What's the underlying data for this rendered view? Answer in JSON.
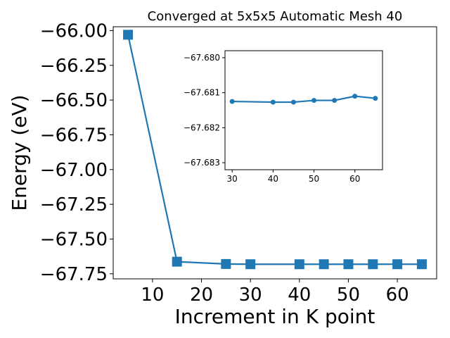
{
  "chart_data": [
    {
      "type": "line",
      "title": "Converged at 5x5x5 Automatic Mesh 40",
      "xlabel": "Increment in K point",
      "ylabel": "Energy (eV)",
      "xlim": [
        1.975,
        68.025
      ],
      "ylim": [
        -67.7865,
        -65.9725
      ],
      "xticks": [
        10,
        20,
        30,
        40,
        50,
        60
      ],
      "yticks": [
        -66.0,
        -66.25,
        -66.5,
        -66.75,
        -67.0,
        -67.25,
        -67.5,
        -67.75
      ],
      "xtick_labels": [
        "10",
        "20",
        "30",
        "40",
        "50",
        "60"
      ],
      "ytick_labels": [
        "−66.00",
        "−66.25",
        "−66.50",
        "−66.75",
        "−67.00",
        "−67.25",
        "−67.50",
        "−67.75"
      ],
      "grid": false,
      "color": "#1f77b4",
      "marker": "square",
      "series": [
        {
          "x": [
            5,
            15,
            25,
            30,
            40,
            45,
            50,
            55,
            60,
            65
          ],
          "y": [
            -66.03,
            -67.663,
            -67.6795,
            -67.6812,
            -67.6813,
            -67.6813,
            -67.6812,
            -67.6812,
            -67.6811,
            -67.6812
          ]
        }
      ]
    },
    {
      "type": "line",
      "title": "",
      "xlabel": "",
      "ylabel": "",
      "xlim": [
        28.25,
        66.75
      ],
      "ylim": [
        -67.6832,
        -67.6798
      ],
      "xticks": [
        30,
        40,
        50,
        60
      ],
      "yticks": [
        -67.683,
        -67.682,
        -67.681,
        -67.68
      ],
      "xtick_labels": [
        "30",
        "40",
        "50",
        "60"
      ],
      "ytick_labels": [
        "−67.683",
        "−67.682",
        "−67.681",
        "−67.680"
      ],
      "grid": false,
      "color": "#1f77b4",
      "marker": "circle",
      "series": [
        {
          "x": [
            30,
            40,
            45,
            50,
            55,
            60,
            65
          ],
          "y": [
            -67.68125,
            -67.68127,
            -67.68127,
            -67.68122,
            -67.68122,
            -67.6811,
            -67.68116
          ]
        }
      ]
    }
  ]
}
